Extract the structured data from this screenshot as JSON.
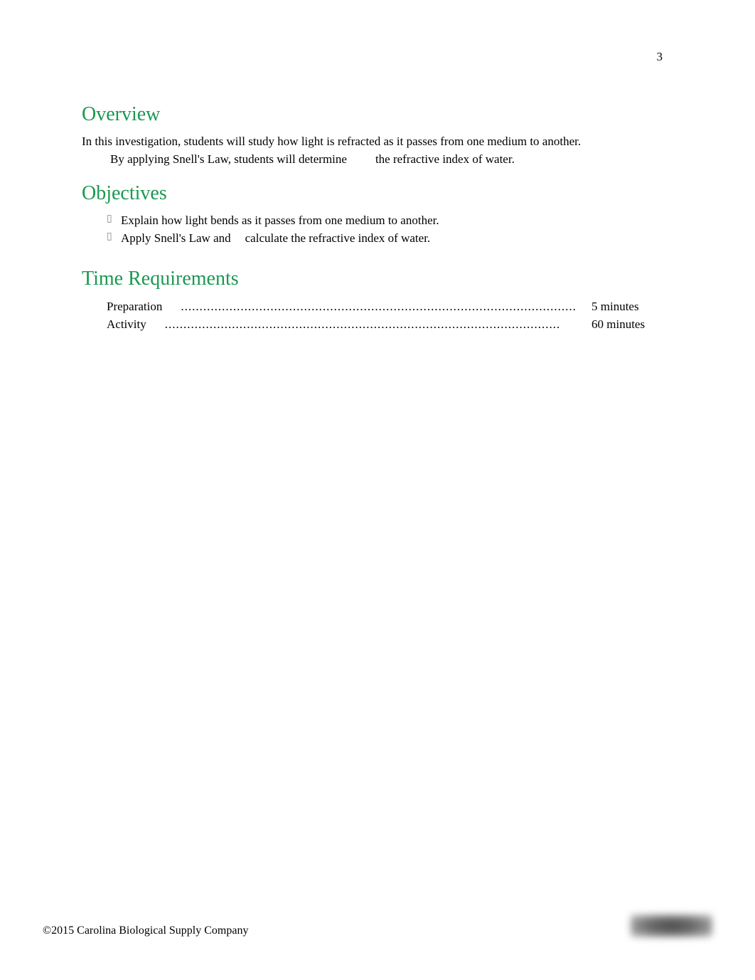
{
  "page_number": "3",
  "overview": {
    "heading": "Overview",
    "text_part1": "In this investigation, students will study how light is refracted as it passes from one medium to another.",
    "text_part2": "By applying Snell's Law, students will determine",
    "text_part3": "the refractive index of water."
  },
  "objectives": {
    "heading": "Objectives",
    "items": [
      {
        "text": "Explain how light bends as it passes from one medium to another."
      },
      {
        "text_a": "Apply Snell's Law and",
        "text_b": "calculate the refractive index of water."
      }
    ]
  },
  "time_requirements": {
    "heading": "Time Requirements",
    "rows": [
      {
        "label": "Preparation",
        "value": "5 minutes"
      },
      {
        "label": "Activity",
        "value": "60 minutes"
      }
    ]
  },
  "dots_fill": "..........................................................................................................",
  "footer": {
    "copyright": "©2015 Carolina Biological Supply Company"
  },
  "colors": {
    "heading_color": "#1a9850",
    "text_color": "#000000",
    "background": "#ffffff"
  },
  "typography": {
    "heading_fontsize": 28,
    "body_fontsize": 17,
    "font_family": "Times New Roman"
  }
}
